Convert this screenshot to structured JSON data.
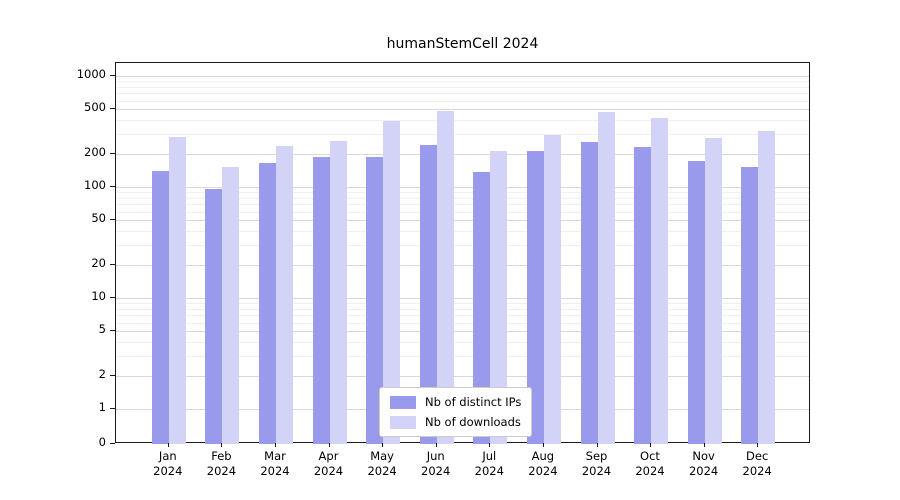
{
  "title": "humanStemCell 2024",
  "chart_data": {
    "type": "bar",
    "title": "humanStemCell 2024",
    "xlabel": "",
    "ylabel": "",
    "yscale": "symlog",
    "ylim": [
      0,
      1000
    ],
    "yticks": [
      0,
      1,
      2,
      5,
      10,
      20,
      50,
      100,
      200,
      500,
      1000
    ],
    "grid": true,
    "legend_position": "lower-center",
    "categories": [
      "Jan 2024",
      "Feb 2024",
      "Mar 2024",
      "Apr 2024",
      "May 2024",
      "Jun 2024",
      "Jul 2024",
      "Aug 2024",
      "Sep 2024",
      "Oct 2024",
      "Nov 2024",
      "Dec 2024"
    ],
    "series": [
      {
        "name": "Nb of distinct IPs",
        "color": "#9a9aed",
        "values": [
          140,
          97,
          165,
          185,
          188,
          240,
          138,
          210,
          252,
          228,
          170,
          152
        ]
      },
      {
        "name": "Nb of downloads",
        "color": "#d3d3f8",
        "values": [
          280,
          152,
          232,
          258,
          390,
          480,
          210,
          295,
          470,
          420,
          278,
          320
        ]
      }
    ]
  }
}
